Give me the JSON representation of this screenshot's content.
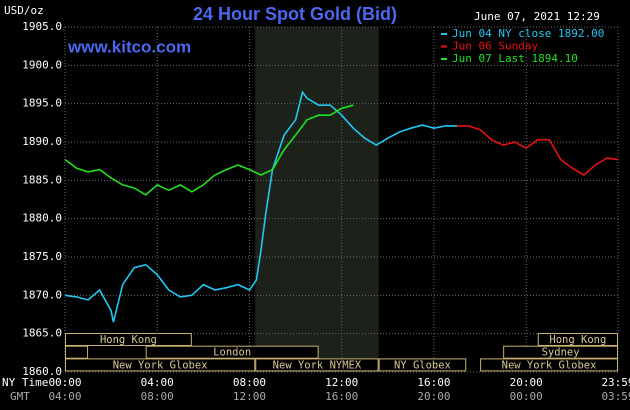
{
  "chart_data": {
    "type": "line",
    "title": "24 Hour Spot Gold (Bid)",
    "unit": "USD/oz",
    "site": "www.kitco.com",
    "timestamp": "June 07, 2021 12:29",
    "xlabel": "NY Time",
    "x2label": "GMT",
    "grid": true,
    "xlim": [
      0,
      23.98
    ],
    "ylim": [
      1860,
      1905
    ],
    "yticks": [
      {
        "value": 1860,
        "label": "1860.0"
      },
      {
        "value": 1865,
        "label": "1865.0"
      },
      {
        "value": 1870,
        "label": "1870.0"
      },
      {
        "value": 1875,
        "label": "1875.0"
      },
      {
        "value": 1880,
        "label": "1880.0"
      },
      {
        "value": 1885,
        "label": "1885.0"
      },
      {
        "value": 1890,
        "label": "1890.0"
      },
      {
        "value": 1895,
        "label": "1895.0"
      },
      {
        "value": 1900,
        "label": "1900.0"
      },
      {
        "value": 1905,
        "label": "1905.0"
      }
    ],
    "xticks": [
      {
        "value": 0,
        "label": "00:00"
      },
      {
        "value": 4,
        "label": "04:00"
      },
      {
        "value": 8,
        "label": "08:00"
      },
      {
        "value": 12,
        "label": "12:00"
      },
      {
        "value": 16,
        "label": "16:00"
      },
      {
        "value": 20,
        "label": "20:00"
      },
      {
        "value": 23.98,
        "label": "23:59"
      }
    ],
    "x2ticks": [
      {
        "value": 0,
        "label": "04:00"
      },
      {
        "value": 4,
        "label": "08:00"
      },
      {
        "value": 8,
        "label": "12:00"
      },
      {
        "value": 12,
        "label": "16:00"
      },
      {
        "value": 16,
        "label": "20:00"
      },
      {
        "value": 20,
        "label": "00:00"
      },
      {
        "value": 23.98,
        "label": "03:59"
      }
    ],
    "series": [
      {
        "name": "Jun 04 NY close 1892.00",
        "color": "#20c8f0",
        "x": [
          0,
          0.5,
          1,
          1.5,
          2,
          2.1,
          2.5,
          3,
          3.5,
          4,
          4.5,
          5,
          5.5,
          6,
          6.5,
          7,
          7.5,
          8,
          8.3,
          8.5,
          8.7,
          9,
          9.5,
          10,
          10.3,
          10.5,
          11,
          11.5,
          12,
          12.5,
          13,
          13.5,
          14,
          14.5,
          15,
          15.5,
          16,
          16.5,
          17
        ],
        "values": [
          1870.0,
          1869.8,
          1869.4,
          1870.7,
          1868.0,
          1866.5,
          1871.4,
          1873.6,
          1874.0,
          1872.7,
          1870.7,
          1869.8,
          1870.0,
          1871.4,
          1870.7,
          1871.0,
          1871.4,
          1870.7,
          1872.0,
          1875.9,
          1880.5,
          1886.4,
          1890.9,
          1892.9,
          1896.5,
          1895.7,
          1894.8,
          1894.8,
          1893.5,
          1891.8,
          1890.5,
          1889.6,
          1890.5,
          1891.3,
          1891.8,
          1892.2,
          1891.8,
          1892.1,
          1892.1
        ]
      },
      {
        "name": "Jun 06 Sunday",
        "color": "#e81010",
        "x": [
          17,
          17.5,
          18,
          18.5,
          19,
          19.5,
          20,
          20.5,
          21,
          21.5,
          22,
          22.5,
          23,
          23.5,
          23.98
        ],
        "values": [
          1892.1,
          1892.1,
          1891.6,
          1890.3,
          1889.6,
          1890.0,
          1889.2,
          1890.3,
          1890.3,
          1887.7,
          1886.6,
          1885.7,
          1887.0,
          1887.9,
          1887.7
        ]
      },
      {
        "name": "Jun 07 Last 1894.10",
        "color": "#20e020",
        "x": [
          0,
          0.5,
          1,
          1.5,
          2,
          2.5,
          3,
          3.5,
          4,
          4.5,
          5,
          5.5,
          6,
          6.5,
          7,
          7.5,
          8,
          8.5,
          9,
          9.5,
          10,
          10.5,
          11,
          11.5,
          12,
          12.5
        ],
        "values": [
          1887.7,
          1886.6,
          1886.1,
          1886.4,
          1885.3,
          1884.4,
          1884.0,
          1883.1,
          1884.4,
          1883.7,
          1884.4,
          1883.5,
          1884.4,
          1885.7,
          1886.4,
          1887.0,
          1886.4,
          1885.7,
          1886.4,
          1889.0,
          1890.9,
          1892.9,
          1893.5,
          1893.5,
          1894.4,
          1894.8
        ]
      }
    ],
    "sessions": [
      [
        {
          "label": "Hong Kong",
          "start": 0,
          "end": 5.5
        },
        {
          "label": "Hong Kong",
          "start": 20.5,
          "end": 23.98
        }
      ],
      [
        {
          "start": 0,
          "end": 1
        },
        {
          "label": "London",
          "start": 3.5,
          "end": 11
        },
        {
          "label": "Sydney",
          "start": 19,
          "end": 23.98
        }
      ],
      [
        {
          "label": "New York Globex",
          "start": 0,
          "end": 8.25
        },
        {
          "label": "New York NYMEX",
          "start": 8.25,
          "end": 13.6
        },
        {
          "label": "NY Globex",
          "start": 13.6,
          "end": 17.4
        },
        {
          "label": "New York Globex",
          "start": 18,
          "end": 23.98
        }
      ]
    ]
  }
}
